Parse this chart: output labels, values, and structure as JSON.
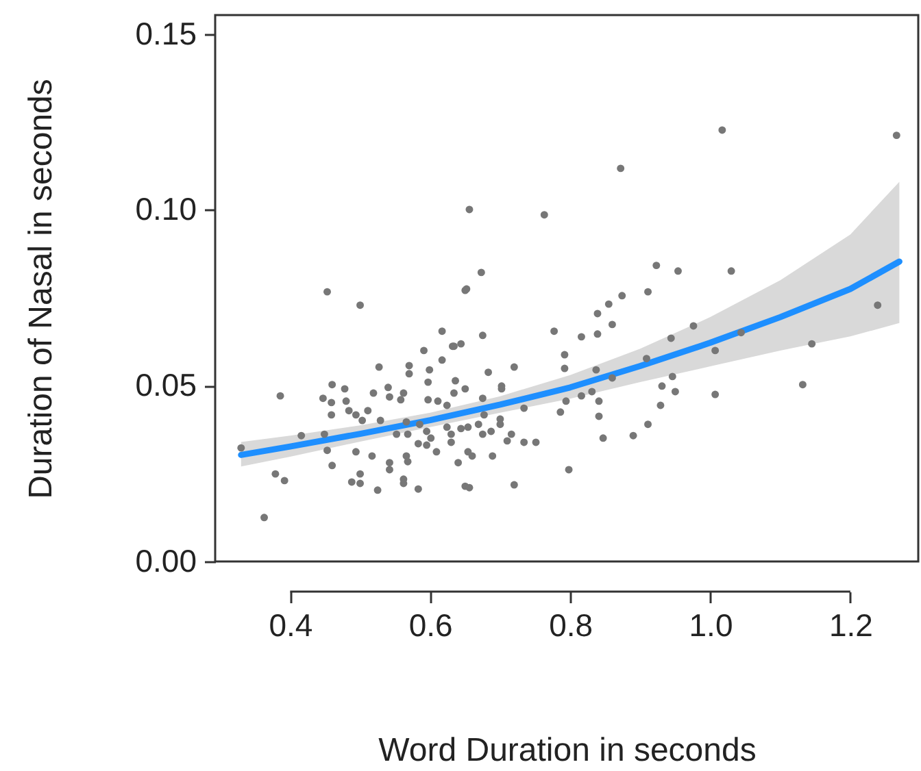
{
  "chart_data": {
    "type": "scatter",
    "xlabel": "Word Duration in seconds",
    "ylabel": "Duration of Nasal in seconds",
    "xlim": [
      0.293,
      1.297
    ],
    "ylim": [
      0,
      0.1554
    ],
    "xticks": [
      0.4,
      0.6,
      0.8,
      {
        "value": 1,
        "label": "1.0"
      },
      1.2
    ],
    "yticks": [
      {
        "value": 0,
        "label": "0.00"
      },
      0.05,
      {
        "value": 0.1,
        "label": "0.10"
      },
      0.15
    ],
    "grid": false,
    "series": [
      {
        "type": "scatter",
        "marker": "circle",
        "color": "#777777",
        "x": [
          0.453,
          0.5,
          0.617,
          0.65,
          0.591,
          0.632,
          0.644,
          0.527,
          0.57,
          0.57,
          0.599,
          0.617,
          0.386,
          0.46,
          0.478,
          0.519,
          0.54,
          0.562,
          0.597,
          0.636,
          0.447,
          0.459,
          0.48,
          0.542,
          0.558,
          0.597,
          0.611,
          0.624,
          0.634,
          0.459,
          0.484,
          0.494,
          0.503,
          0.511,
          0.529,
          0.566,
          0.552,
          0.568,
          0.585,
          0.595,
          0.624,
          0.63,
          0.416,
          0.449,
          0.33,
          0.583,
          0.595,
          0.601,
          0.63,
          0.644,
          0.453,
          0.494,
          0.517,
          0.566,
          0.568,
          0.609,
          0.542,
          0.542,
          0.64,
          0.46,
          0.379,
          0.392,
          0.488,
          0.5,
          0.5,
          0.525,
          0.562,
          0.562,
          0.583,
          0.65,
          0.363,
          0.656,
          0.763,
          0.673,
          0.652,
          0.923,
          0.954,
          0.874,
          0.911,
          0.855,
          0.839,
          0.86,
          0.777,
          0.816,
          0.839,
          0.675,
          0.634,
          0.792,
          0.944,
          0.976,
          0.792,
          0.837,
          0.72,
          0.683,
          0.909,
          0.65,
          0.702,
          0.702,
          0.86,
          0.946,
          0.931,
          0.95,
          0.675,
          0.734,
          0.794,
          0.816,
          0.831,
          0.841,
          0.929,
          0.786,
          0.841,
          0.677,
          0.654,
          0.669,
          0.675,
          0.687,
          0.7,
          0.7,
          0.716,
          0.71,
          0.734,
          0.751,
          0.654,
          0.66,
          0.689,
          0.911,
          0.89,
          0.847,
          0.798,
          0.656,
          0.72,
          1.017,
          1.266,
          1.03,
          1.044,
          1.007,
          1.145,
          1.239,
          1.007,
          1.132,
          0.872
        ],
        "values": [
          0.0767,
          0.0729,
          0.0655,
          0.0771,
          0.06,
          0.0612,
          0.0619,
          0.0553,
          0.0557,
          0.0534,
          0.0545,
          0.0573,
          0.0471,
          0.0503,
          0.0491,
          0.0479,
          0.0495,
          0.0479,
          0.051,
          0.0514,
          0.0464,
          0.0452,
          0.0456,
          0.0468,
          0.046,
          0.046,
          0.0456,
          0.0444,
          0.0479,
          0.0417,
          0.0429,
          0.0417,
          0.0401,
          0.0429,
          0.0401,
          0.0397,
          0.0362,
          0.0362,
          0.039,
          0.037,
          0.0382,
          0.0362,
          0.0358,
          0.0362,
          0.0323,
          0.0335,
          0.0331,
          0.0351,
          0.0339,
          0.0378,
          0.0316,
          0.0312,
          0.03,
          0.03,
          0.0284,
          0.0312,
          0.0281,
          0.0261,
          0.0281,
          0.0273,
          0.0249,
          0.023,
          0.0226,
          0.0249,
          0.0222,
          0.0203,
          0.0234,
          0.0222,
          0.0206,
          0.0214,
          0.0125,
          0.1001,
          0.0986,
          0.0822,
          0.0775,
          0.0842,
          0.0826,
          0.0756,
          0.0767,
          0.0732,
          0.0705,
          0.0674,
          0.0655,
          0.0639,
          0.0647,
          0.0643,
          0.0612,
          0.0588,
          0.0635,
          0.067,
          0.0549,
          0.0545,
          0.0553,
          0.0538,
          0.0577,
          0.0491,
          0.0499,
          0.0491,
          0.0522,
          0.0526,
          0.0499,
          0.0483,
          0.0464,
          0.0436,
          0.0456,
          0.0471,
          0.0483,
          0.0456,
          0.0444,
          0.0425,
          0.0413,
          0.0417,
          0.0382,
          0.039,
          0.0362,
          0.037,
          0.0405,
          0.039,
          0.0362,
          0.0343,
          0.0339,
          0.0339,
          0.0312,
          0.03,
          0.03,
          0.039,
          0.0358,
          0.0351,
          0.0261,
          0.021,
          0.0218,
          0.1227,
          0.1212,
          0.0826,
          0.0651,
          0.06,
          0.0619,
          0.0729,
          0.0475,
          0.0503,
          0.1118
        ]
      },
      {
        "type": "line",
        "marker": "none",
        "color": "#1e8fff",
        "x": [
          0.33,
          0.4,
          0.5,
          0.6,
          0.7,
          0.8,
          0.9,
          1.0,
          1.1,
          1.2,
          1.27
        ],
        "values": [
          0.0303,
          0.0327,
          0.0363,
          0.0402,
          0.0446,
          0.0495,
          0.0556,
          0.0622,
          0.0695,
          0.0775,
          0.0853
        ],
        "lower": [
          0.027,
          0.0298,
          0.0341,
          0.0382,
          0.0423,
          0.0463,
          0.051,
          0.0555,
          0.06,
          0.064,
          0.0678
        ],
        "upper": [
          0.034,
          0.0358,
          0.0387,
          0.0423,
          0.047,
          0.053,
          0.0605,
          0.0695,
          0.08,
          0.093,
          0.108
        ]
      }
    ]
  }
}
